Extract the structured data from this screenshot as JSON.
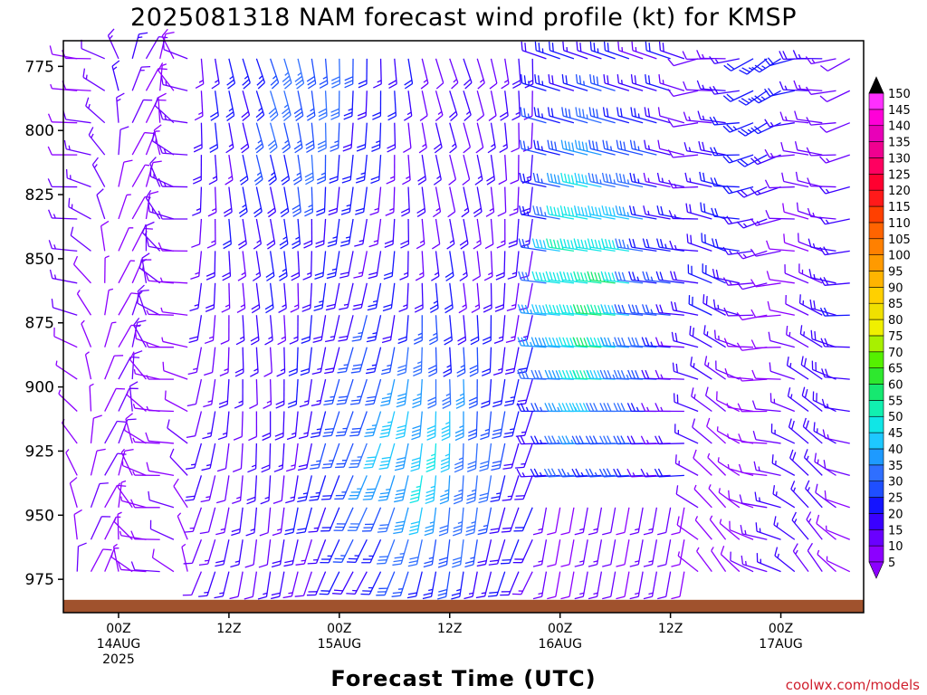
{
  "chart_data": {
    "type": "wind-barb-profile",
    "title": "2025081318 NAM forecast wind profile (kt) for KMSP",
    "xlabel": "Forecast Time (UTC)",
    "credit": "coolwx.com/models",
    "y_axis": {
      "unit": "hPa",
      "ticks": [
        775,
        800,
        825,
        850,
        875,
        900,
        925,
        950,
        975
      ],
      "range": [
        765,
        988
      ]
    },
    "x_axis": {
      "unit": "forecast hour",
      "range": [
        -6,
        81
      ],
      "ticks": [
        {
          "hour": 0,
          "line1": "00Z",
          "line2": "14AUG",
          "line3": "2025"
        },
        {
          "hour": 12,
          "line1": "12Z",
          "line2": "",
          "line3": ""
        },
        {
          "hour": 24,
          "line1": "00Z",
          "line2": "15AUG",
          "line3": ""
        },
        {
          "hour": 36,
          "line1": "12Z",
          "line2": "",
          "line3": ""
        },
        {
          "hour": 48,
          "line1": "00Z",
          "line2": "16AUG",
          "line3": ""
        },
        {
          "hour": 60,
          "line1": "12Z",
          "line2": "",
          "line3": ""
        },
        {
          "hour": 72,
          "line1": "00Z",
          "line2": "17AUG",
          "line3": ""
        }
      ]
    },
    "colorbar": {
      "unit": "kt",
      "levels": [
        5,
        10,
        15,
        20,
        25,
        30,
        35,
        40,
        45,
        50,
        55,
        60,
        65,
        70,
        75,
        80,
        85,
        90,
        95,
        100,
        105,
        110,
        115,
        120,
        125,
        130,
        135,
        140,
        145,
        150
      ],
      "colors": [
        "#8c00ff",
        "#6a00ff",
        "#3a00ff",
        "#1414ff",
        "#1f4fff",
        "#2f6fff",
        "#1e9aff",
        "#1ec8ff",
        "#10e6e6",
        "#11f0b0",
        "#16e870",
        "#2ee82e",
        "#55f000",
        "#a8f000",
        "#f0f000",
        "#f0e000",
        "#ffd000",
        "#ffb400",
        "#ff9a00",
        "#ff8000",
        "#ff6400",
        "#ff4000",
        "#ff1a1a",
        "#ff0030",
        "#ff0060",
        "#f00090",
        "#e800b8",
        "#ff00d8",
        "#ff30ff",
        "#000000"
      ]
    },
    "terrain": {
      "surface_pressure_hPa": 983,
      "color": "#a0522d"
    },
    "frame_time": "2025081318",
    "frame_hours_step": 1.5,
    "frame_levels_step_hPa": 12.5
  }
}
